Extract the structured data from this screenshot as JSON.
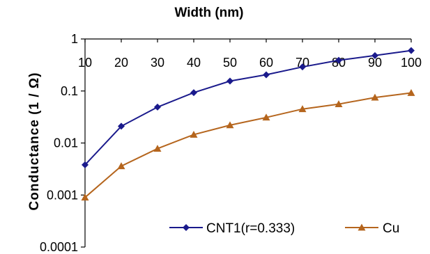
{
  "chart_data": {
    "type": "line",
    "xlabel": "Width (nm)",
    "ylabel": "Conductance (1 / Ω)",
    "x": [
      10,
      20,
      30,
      40,
      50,
      60,
      70,
      80,
      90,
      100
    ],
    "x_tick_labels": [
      "10",
      "20",
      "30",
      "40",
      "50",
      "60",
      "70",
      "80",
      "90",
      "100"
    ],
    "y_scale": "log",
    "ylim": [
      0.0001,
      1
    ],
    "y_tick_labels": [
      "1",
      "0.1",
      "0.01",
      "0.001",
      "0.0001"
    ],
    "y_tick_values": [
      1,
      0.1,
      0.01,
      0.001,
      0.0001
    ],
    "x_axis_position": "top",
    "grid": false,
    "legend_position": "bottom-right",
    "series": [
      {
        "name": "CNT1(r=0.333)",
        "color": "#1a1a8c",
        "marker": "diamond",
        "values": [
          0.0038,
          0.021,
          0.049,
          0.093,
          0.155,
          0.205,
          0.29,
          0.39,
          0.48,
          0.6
        ]
      },
      {
        "name": "Cu",
        "color": "#b5651d",
        "marker": "triangle",
        "values": [
          0.0009,
          0.0036,
          0.0078,
          0.0145,
          0.022,
          0.031,
          0.045,
          0.056,
          0.075,
          0.092
        ]
      }
    ]
  }
}
